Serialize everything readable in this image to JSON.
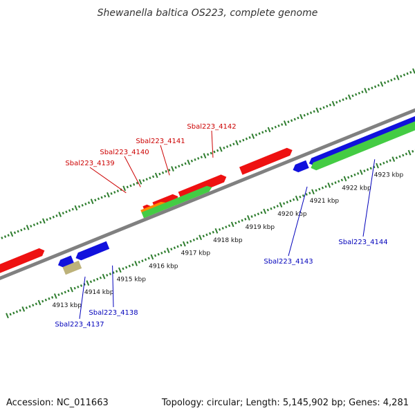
{
  "title": "Shewanella baltica OS223, complete genome",
  "footer": {
    "accession": "Accession: NC_011663",
    "summary": "Topology: circular; Length: 5,145,902 bp; Genes: 4,281"
  },
  "colors": {
    "backbone": "#808080",
    "tick": "#2e7d2e",
    "forward_cds": "#ee1111",
    "reverse_cds": "#1111dd",
    "gene_forward": "#44cc44",
    "rna": "#ff8800",
    "other": "#bdb27a",
    "forward_label": "#cc0000",
    "reverse_label": "#0000bb"
  },
  "chart_data": {
    "type": "genome-map",
    "scale_unit": "kbp",
    "scale_ticks": [
      {
        "kbp": 4913,
        "label": "4913 kbp"
      },
      {
        "kbp": 4914,
        "label": "4914 kbp"
      },
      {
        "kbp": 4915,
        "label": "4915 kbp"
      },
      {
        "kbp": 4916,
        "label": "4916 kbp"
      },
      {
        "kbp": 4917,
        "label": "4917 kbp"
      },
      {
        "kbp": 4918,
        "label": "4918 kbp"
      },
      {
        "kbp": 4919,
        "label": "4919 kbp"
      },
      {
        "kbp": 4920,
        "label": "4920 kbp"
      },
      {
        "kbp": 4921,
        "label": "4921 kbp"
      },
      {
        "kbp": 4922,
        "label": "4922 kbp"
      },
      {
        "kbp": 4923,
        "label": "4923 kbp"
      }
    ],
    "features": [
      {
        "strand": "+",
        "kind": "cds",
        "start": 4911.7,
        "end": 4913.2,
        "label": ""
      },
      {
        "strand": "+",
        "kind": "cds",
        "start": 4916.3,
        "end": 4916.55,
        "label": ""
      },
      {
        "strand": "+",
        "kind": "cds",
        "start": 4916.6,
        "end": 4917.35,
        "label": "Sbal223_4139",
        "label_target": 4916.0
      },
      {
        "strand": "+",
        "kind": "cds",
        "start": 4917.4,
        "end": 4918.85,
        "label": "Sbal223_4141",
        "label_target": 4917.35
      },
      {
        "strand": "+",
        "kind": "cds",
        "start": 4919.3,
        "end": 4920.9,
        "label": "Sbal223_4142",
        "label_target": 4918.7
      },
      {
        "strand": "+",
        "kind": "rna",
        "start": 4916.2,
        "end": 4916.95,
        "label": ""
      },
      {
        "strand": "+",
        "kind": "gene",
        "start": 4916.2,
        "end": 4918.35,
        "label": "Sbal223_4140",
        "label_target": 4916.45
      },
      {
        "strand": "-",
        "kind": "cds",
        "start": 4913.4,
        "end": 4913.85,
        "label": ""
      },
      {
        "strand": "-",
        "kind": "cds",
        "start": 4913.95,
        "end": 4914.95,
        "label": ""
      },
      {
        "strand": "-",
        "kind": "cds",
        "start": 4920.7,
        "end": 4921.15,
        "label": ""
      },
      {
        "strand": "-",
        "kind": "cds",
        "start": 4921.2,
        "end": 4925.0,
        "label": ""
      },
      {
        "strand": "-",
        "kind": "gene",
        "start": 4921.2,
        "end": 4925.0,
        "label": ""
      },
      {
        "strand": "-",
        "kind": "other",
        "start": 4913.5,
        "end": 4914.0,
        "label": "Sbal223_4137",
        "label_target": 4914.0
      },
      {
        "strand": "-",
        "kind": "cds",
        "start": 4914.1,
        "end": 4914.2,
        "label": "Sbal223_4138",
        "label_target": 4914.85
      },
      {
        "strand": "-",
        "kind": "cds",
        "start": 4920.95,
        "end": 4921.0,
        "label": "Sbal223_4143",
        "label_target": 4920.9
      },
      {
        "strand": "-",
        "kind": "cds",
        "start": 4922.9,
        "end": 4923.0,
        "label": "Sbal223_4144",
        "label_target": 4923.0
      }
    ]
  }
}
